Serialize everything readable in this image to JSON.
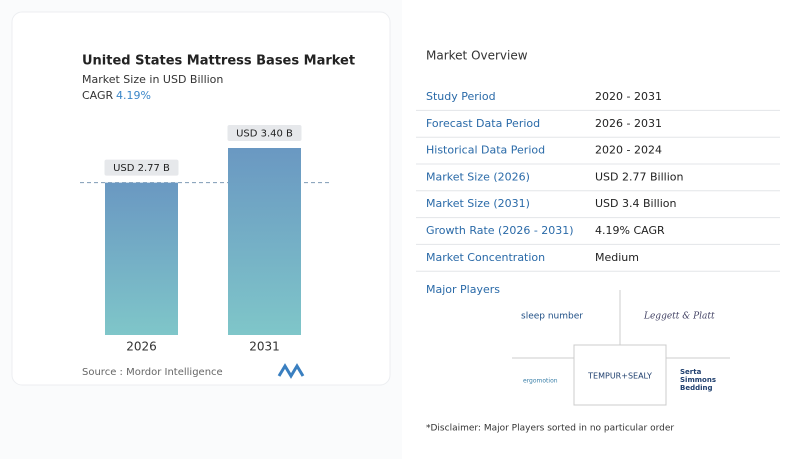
{
  "chart_data": {
    "type": "bar",
    "title": "United States Mattress Bases Market",
    "subtitle": "Market Size in USD Billion",
    "cagr_label": "CAGR",
    "cagr_value": "4.19%",
    "categories": [
      "2026",
      "2031"
    ],
    "values": [
      2.77,
      3.4
    ],
    "value_labels": [
      "USD 2.77 B",
      "USD 3.40 B"
    ],
    "colors": [
      "#6a98c2",
      "#7fc6c9"
    ],
    "source": "Source :  Mordor Intelligence"
  },
  "overview": {
    "title": "Market Overview",
    "rows": [
      [
        "Study Period",
        "2020 - 2031"
      ],
      [
        "Forecast Data Period",
        "2026 - 2031"
      ],
      [
        "Historical Data Period",
        "2020 - 2024"
      ],
      [
        "Market Size (2026)",
        "USD 2.77 Billion"
      ],
      [
        "Market Size (2031)",
        "USD 3.4 Billion"
      ],
      [
        "Growth Rate (2026 - 2031)",
        "4.19% CAGR"
      ],
      [
        "Market Concentration",
        "Medium"
      ]
    ]
  },
  "players": {
    "title": "Major Players",
    "names": [
      "sleep number",
      "Leggett & Platt",
      "TEMPUR+SEALY",
      "ergomotion",
      "Serta Simmons Bedding"
    ]
  },
  "disclaimer": "*Disclaimer: Major Players sorted in no particular order"
}
